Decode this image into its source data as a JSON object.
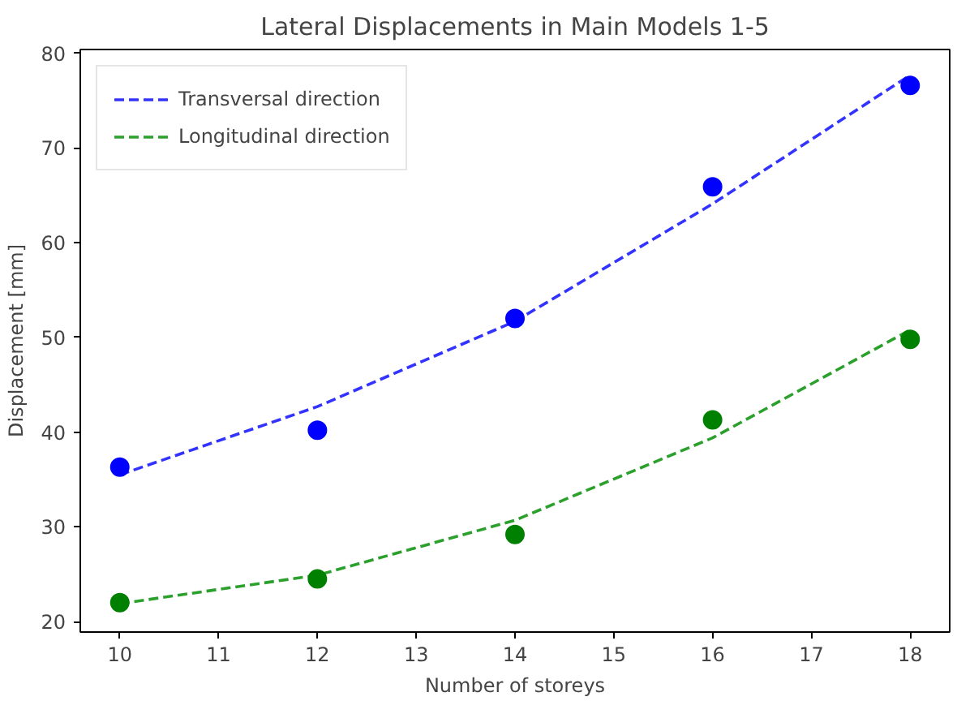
{
  "chart_data": {
    "type": "scatter",
    "title": "Lateral Displacements in Main Models 1-5",
    "xlabel": "Number of storeys",
    "ylabel": "Displacement [mm]",
    "xlim": [
      9.6,
      18.4
    ],
    "ylim": [
      18.9,
      80.4
    ],
    "xticks": [
      10,
      11,
      12,
      13,
      14,
      15,
      16,
      17,
      18
    ],
    "yticks": [
      20,
      30,
      40,
      50,
      60,
      70,
      80
    ],
    "grid": false,
    "legend": "top left",
    "series": [
      {
        "name": "Transversal direction",
        "type": "line",
        "line_style": "dashed",
        "marker": "none",
        "color": "#3333ff",
        "x": [
          10,
          12,
          14,
          16,
          18
        ],
        "values": [
          35.5,
          42.7,
          51.7,
          64.1,
          77.7
        ]
      },
      {
        "name": "Longitudinal direction",
        "type": "line",
        "line_style": "dashed",
        "marker": "none",
        "color": "#2ca02c",
        "x": [
          10,
          12,
          14,
          16,
          18
        ],
        "values": [
          21.9,
          24.9,
          30.7,
          39.4,
          50.8
        ]
      },
      {
        "marker": "circle",
        "color": "#0000ff",
        "x": [
          10,
          12,
          14,
          16,
          18
        ],
        "values": [
          36.3,
          40.2,
          52.0,
          65.9,
          76.6
        ]
      },
      {
        "marker": "circle",
        "color": "#008000",
        "x": [
          10,
          12,
          14,
          16,
          18
        ],
        "values": [
          22.0,
          24.5,
          29.2,
          41.3,
          49.8
        ]
      }
    ]
  }
}
